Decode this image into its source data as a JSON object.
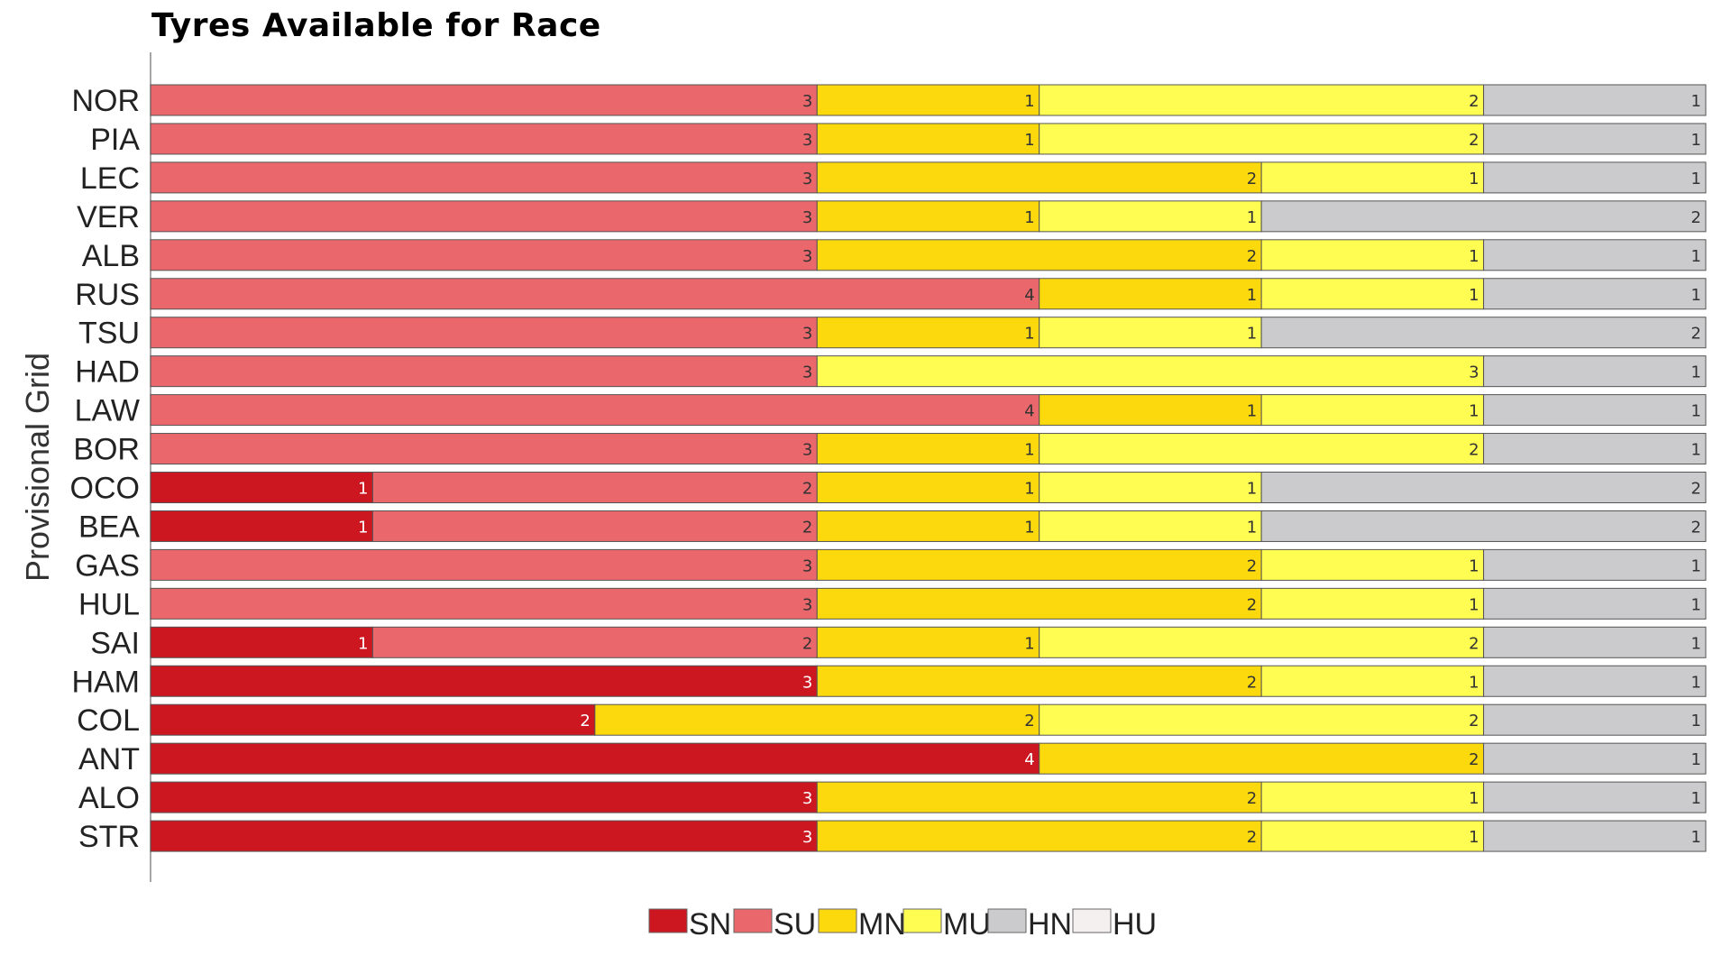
{
  "chart_data": {
    "type": "bar",
    "orientation": "horizontal",
    "stacked": true,
    "title": "Tyres Available for Race",
    "ylabel": "Provisional Grid",
    "xlabel": "",
    "xlim": [
      0,
      7
    ],
    "categories": [
      "NOR",
      "PIA",
      "LEC",
      "VER",
      "ALB",
      "RUS",
      "TSU",
      "HAD",
      "LAW",
      "BOR",
      "OCO",
      "BEA",
      "GAS",
      "HUL",
      "SAI",
      "HAM",
      "COL",
      "ANT",
      "ALO",
      "STR"
    ],
    "series": [
      {
        "name": "SN",
        "color": "#cc1720",
        "label_color": "#ffffff",
        "values": [
          0,
          0,
          0,
          0,
          0,
          0,
          0,
          0,
          0,
          0,
          1,
          1,
          0,
          0,
          1,
          3,
          2,
          4,
          3,
          3
        ]
      },
      {
        "name": "SU",
        "color": "#ea676c",
        "label_color": "#333333",
        "values": [
          3,
          3,
          3,
          3,
          3,
          4,
          3,
          3,
          4,
          3,
          2,
          2,
          3,
          3,
          2,
          0,
          0,
          0,
          0,
          0
        ]
      },
      {
        "name": "MN",
        "color": "#fcd90c",
        "label_color": "#333333",
        "values": [
          1,
          1,
          2,
          1,
          2,
          1,
          1,
          0,
          1,
          1,
          1,
          1,
          2,
          2,
          1,
          2,
          2,
          2,
          2,
          2
        ]
      },
      {
        "name": "MU",
        "color": "#fffd52",
        "label_color": "#333333",
        "values": [
          2,
          2,
          1,
          1,
          1,
          1,
          1,
          3,
          1,
          2,
          1,
          1,
          1,
          1,
          2,
          1,
          2,
          0,
          1,
          1
        ]
      },
      {
        "name": "HN",
        "color": "#cbcbcd",
        "label_color": "#333333",
        "values": [
          1,
          1,
          1,
          2,
          1,
          1,
          2,
          1,
          1,
          1,
          2,
          2,
          1,
          1,
          1,
          1,
          1,
          1,
          1,
          1
        ]
      },
      {
        "name": "HU",
        "color": "#f4f0f0",
        "label_color": "#333333",
        "values": [
          0,
          0,
          0,
          0,
          0,
          0,
          0,
          0,
          0,
          0,
          0,
          0,
          0,
          0,
          0,
          0,
          0,
          0,
          0,
          0
        ]
      }
    ],
    "legend_position": "bottom-center",
    "grid": false
  }
}
